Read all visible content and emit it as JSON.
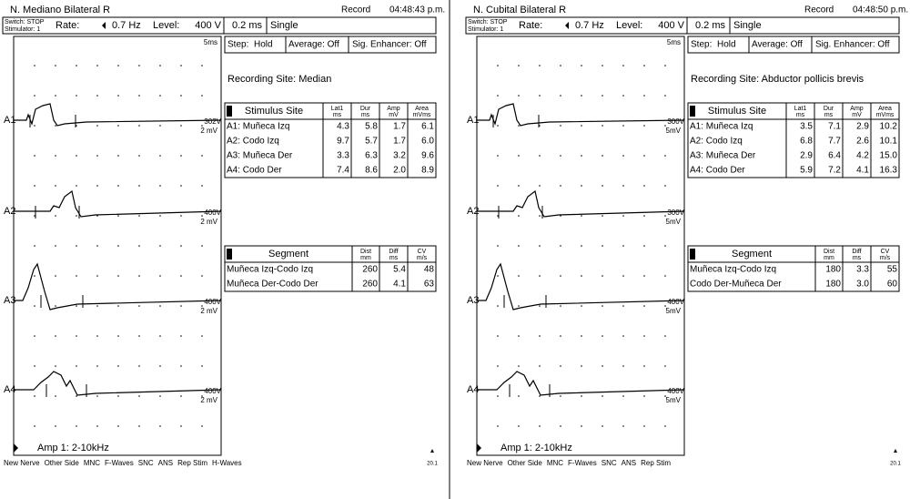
{
  "panels": [
    {
      "header": {
        "study": "N. Mediano Bilateral R",
        "status": "Record",
        "time": "04:48:43 p.m."
      },
      "controls": {
        "switch": "Switch: STOP",
        "stimulator": "Stimulator: 1",
        "rate_label": "Rate:",
        "rate": "0.7 Hz",
        "level_label": "Level:",
        "level": "400 V",
        "duration": "0.2 ms",
        "mode": "Single"
      },
      "options": {
        "step": "Step:",
        "hold": "Hold",
        "average": "Average: Off",
        "enhancer": "Sig. Enhancer: Off"
      },
      "sweep": "5ms",
      "traces": [
        {
          "label": "A1",
          "voltage": "302V",
          "gain": "2 mV"
        },
        {
          "label": "A2",
          "voltage": "400V",
          "gain": "2 mV"
        },
        {
          "label": "A3",
          "voltage": "400V",
          "gain": "2 mV"
        },
        {
          "label": "A4",
          "voltage": "400V",
          "gain": "2 mV"
        }
      ],
      "recording_site": "Recording Site: Median",
      "stim_table": {
        "columns": [
          {
            "name": "Stimulus Site",
            "unit": ""
          },
          {
            "name": "Lat1",
            "unit": "ms"
          },
          {
            "name": "Dur",
            "unit": "ms"
          },
          {
            "name": "Amp",
            "unit": "mV"
          },
          {
            "name": "Area",
            "unit": "mVms"
          }
        ],
        "rows": [
          [
            "A1: Muñeca Izq",
            "4.3",
            "5.8",
            "1.7",
            "6.1"
          ],
          [
            "A2: Codo Izq",
            "9.7",
            "5.7",
            "1.7",
            "6.0"
          ],
          [
            "A3: Muñeca Der",
            "3.3",
            "6.3",
            "3.2",
            "9.6"
          ],
          [
            "A4: Codo Der",
            "7.4",
            "8.6",
            "2.0",
            "8.9"
          ]
        ]
      },
      "segment_table": {
        "columns": [
          {
            "name": "Segment",
            "unit": ""
          },
          {
            "name": "Dist",
            "unit": "mm"
          },
          {
            "name": "Diff",
            "unit": "ms"
          },
          {
            "name": "CV",
            "unit": "m/s"
          }
        ],
        "rows": [
          [
            "Muñeca Izq-Codo Izq",
            "260",
            "5.4",
            "48"
          ],
          [
            "Muñeca Der-Codo Der",
            "260",
            "4.1",
            "63"
          ]
        ]
      },
      "filter": "Amp 1: 2-10kHz",
      "menu": [
        "New Nerve",
        "Other Side",
        "MNC",
        "F-Waves",
        "SNC",
        "ANS",
        "Rep Stim",
        "H-Waves"
      ],
      "page": "20.1"
    },
    {
      "header": {
        "study": "N. Cubital Bilateral R",
        "status": "Record",
        "time": "04:48:50 p.m."
      },
      "controls": {
        "switch": "Switch: STOP",
        "stimulator": "Stimulator: 1",
        "rate_label": "Rate:",
        "rate": "0.7 Hz",
        "level_label": "Level:",
        "level": "400 V",
        "duration": "0.2 ms",
        "mode": "Single"
      },
      "options": {
        "step": "Step:",
        "hold": "Hold",
        "average": "Average: Off",
        "enhancer": "Sig. Enhancer: Off"
      },
      "sweep": "5ms",
      "traces": [
        {
          "label": "A1",
          "voltage": "300V",
          "gain": "5mV"
        },
        {
          "label": "A2",
          "voltage": "300V",
          "gain": "5mV"
        },
        {
          "label": "A3",
          "voltage": "400V",
          "gain": "5mV"
        },
        {
          "label": "A4",
          "voltage": "400V",
          "gain": "5mV"
        }
      ],
      "recording_site": "Recording Site: Abductor pollicis brevis",
      "stim_table": {
        "columns": [
          {
            "name": "Stimulus Site",
            "unit": ""
          },
          {
            "name": "Lat1",
            "unit": "ms"
          },
          {
            "name": "Dur",
            "unit": "ms"
          },
          {
            "name": "Amp",
            "unit": "mV"
          },
          {
            "name": "Area",
            "unit": "mVms"
          }
        ],
        "rows": [
          [
            "A1: Muñeca Izq",
            "3.5",
            "7.1",
            "2.9",
            "10.2"
          ],
          [
            "A2: Codo Izq",
            "6.8",
            "7.7",
            "2.6",
            "10.1"
          ],
          [
            "A3: Muñeca Der",
            "2.9",
            "6.4",
            "4.2",
            "15.0"
          ],
          [
            "A4: Codo Der",
            "5.9",
            "7.2",
            "4.1",
            "16.3"
          ]
        ]
      },
      "segment_table": {
        "columns": [
          {
            "name": "Segment",
            "unit": ""
          },
          {
            "name": "Dist",
            "unit": "mm"
          },
          {
            "name": "Diff",
            "unit": "ms"
          },
          {
            "name": "CV",
            "unit": "m/s"
          }
        ],
        "rows": [
          [
            "Muñeca Izq-Codo Izq",
            "180",
            "3.3",
            "55"
          ],
          [
            "Codo Der-Muñeca Der",
            "180",
            "3.0",
            "60"
          ]
        ]
      },
      "filter": "Amp 1: 2-10kHz",
      "menu": [
        "New Nerve",
        "Other Side",
        "MNC",
        "F-Waves",
        "SNC",
        "ANS",
        "Rep Stim"
      ],
      "page": "20.1"
    }
  ]
}
